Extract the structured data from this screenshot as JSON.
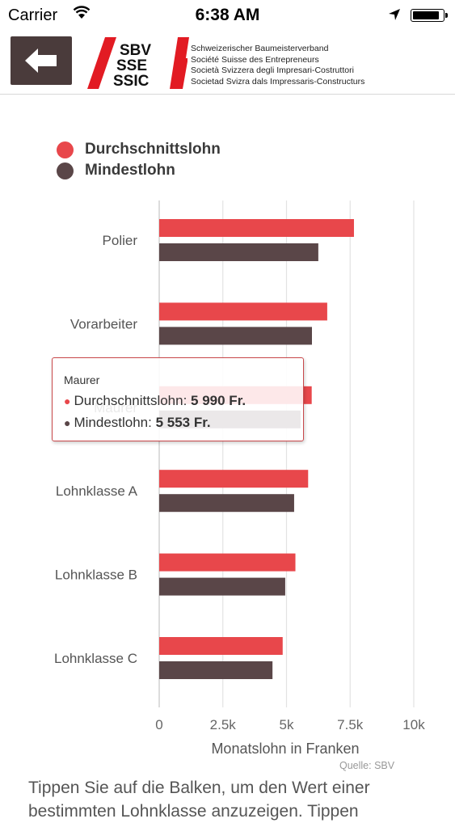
{
  "status_bar": {
    "carrier": "Carrier",
    "time": "6:38 AM",
    "battery_level": 0.9
  },
  "header": {
    "logo_lines": [
      "SBV",
      "SSE",
      "SSIC"
    ],
    "org_names": [
      "Schweizerischer Baumeisterverband",
      "Société Suisse des Entrepreneurs",
      "Società Svizzera degli Impresari-Costruttori",
      "Societad Svizra dals Impressaris-Constructurs"
    ]
  },
  "colors": {
    "series_avg": "#e8474b",
    "series_min": "#5a4648",
    "accent_red": "#e21b23",
    "header_dark": "#4a3b3b"
  },
  "legend": [
    {
      "label": "Durchschnittslohn",
      "color": "#e8474b"
    },
    {
      "label": "Mindestlohn",
      "color": "#5a4648"
    }
  ],
  "chart_data": {
    "type": "bar",
    "orientation": "horizontal",
    "categories": [
      "Polier",
      "Vorarbeiter",
      "Maurer",
      "Lohnklasse A",
      "Lohnklasse B",
      "Lohnklasse C"
    ],
    "series": [
      {
        "name": "Durchschnittslohn",
        "values": [
          7650,
          6600,
          5990,
          5850,
          5350,
          4850
        ]
      },
      {
        "name": "Mindestlohn",
        "values": [
          6250,
          6000,
          5553,
          5300,
          4950,
          4450
        ]
      }
    ],
    "xlim": [
      0,
      10000
    ],
    "x_ticks": [
      0,
      2500,
      5000,
      7500,
      10000
    ],
    "x_tick_labels": [
      "0",
      "2.5k",
      "5k",
      "7.5k",
      "10k"
    ],
    "xlabel": "Monatslohn in Franken",
    "grid": true,
    "legend_position": "top-left"
  },
  "tooltip": {
    "title": "Maurer",
    "rows": [
      {
        "label": "Durchschnittslohn:",
        "value": "5 990 Fr."
      },
      {
        "label": "Mindestlohn:",
        "value": "5 553 Fr."
      }
    ]
  },
  "source": "Quelle: SBV",
  "footer_text": "Tippen Sie auf die Balken, um den Wert einer bestimmten Lohnklasse anzuzeigen. Tippen"
}
